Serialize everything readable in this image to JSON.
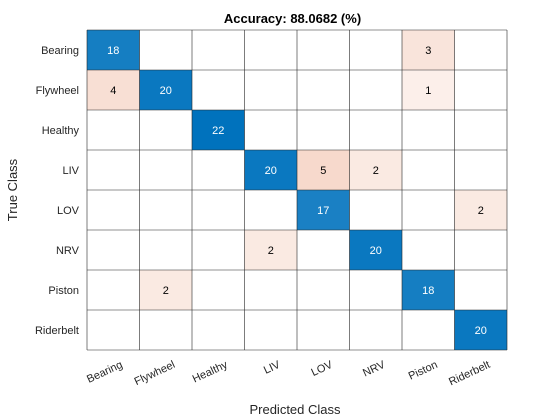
{
  "chart_data": {
    "type": "heatmap",
    "title": "Accuracy: 88.0682 (%)",
    "xlabel": "Predicted Class",
    "ylabel": "True Class",
    "classes": [
      "Bearing",
      "Flywheel",
      "Healthy",
      "LIV",
      "LOV",
      "NRV",
      "Piston",
      "Riderbelt"
    ],
    "matrix": [
      [
        18,
        0,
        0,
        0,
        0,
        0,
        3,
        0
      ],
      [
        4,
        20,
        0,
        0,
        0,
        0,
        1,
        0
      ],
      [
        0,
        0,
        22,
        0,
        0,
        0,
        0,
        0
      ],
      [
        0,
        0,
        0,
        20,
        5,
        2,
        0,
        0
      ],
      [
        0,
        0,
        0,
        0,
        17,
        0,
        0,
        2
      ],
      [
        0,
        0,
        0,
        2,
        0,
        20,
        0,
        0
      ],
      [
        0,
        2,
        0,
        0,
        0,
        0,
        18,
        0
      ],
      [
        0,
        0,
        0,
        0,
        0,
        0,
        0,
        20
      ]
    ],
    "colors": {
      "diagonal": "#0072BD",
      "off_diagonal": "#D95319",
      "grid": "#262626",
      "light_text": "#ffffff",
      "dark_text": "#000000"
    }
  }
}
